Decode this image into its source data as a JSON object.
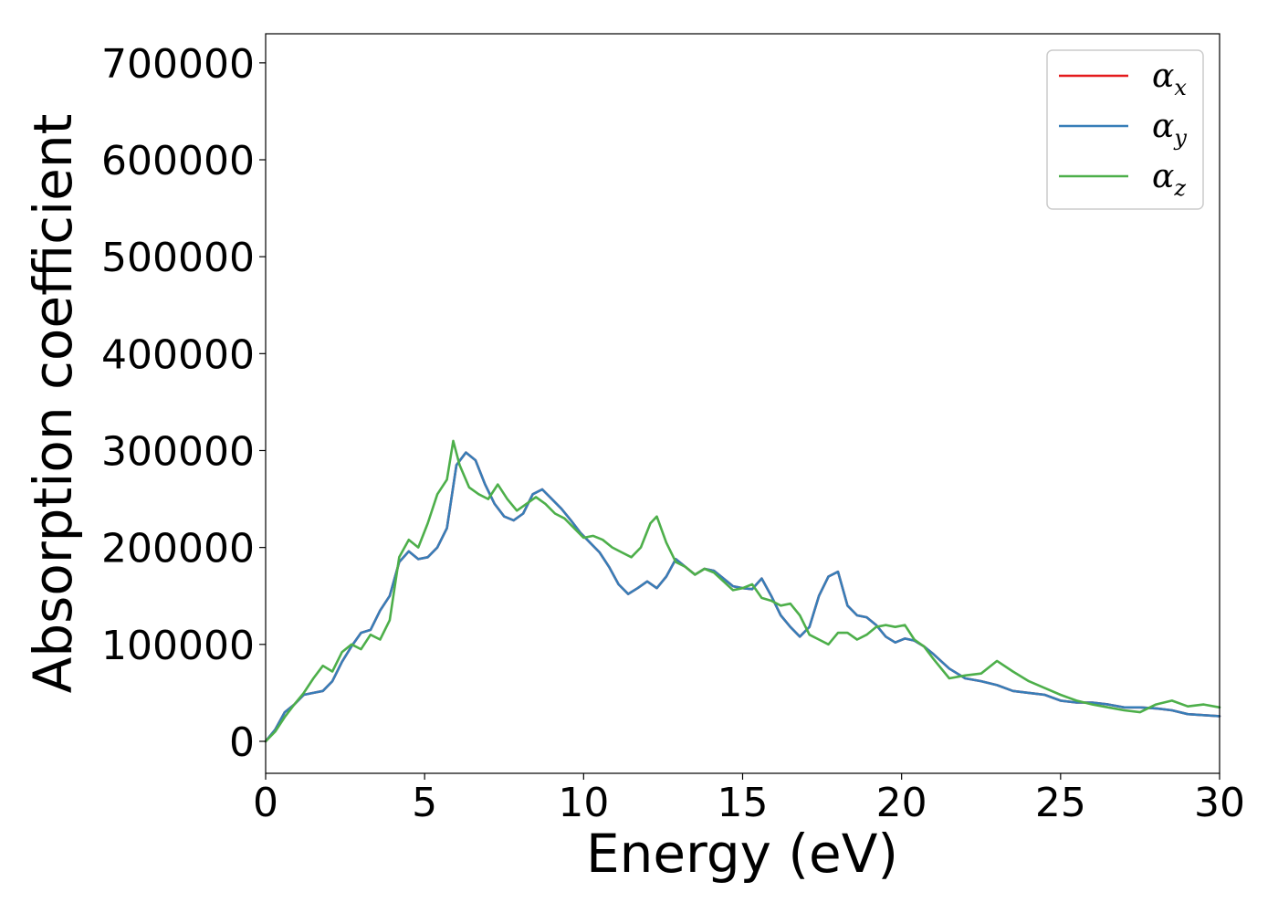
{
  "chart_data": {
    "type": "line",
    "title": "",
    "xlabel": "Energy (eV)",
    "ylabel": "Absorption coefficient",
    "xlim": [
      0,
      30
    ],
    "ylim": [
      -33000,
      730000
    ],
    "xticks": [
      0,
      5,
      10,
      15,
      20,
      25,
      30
    ],
    "yticks": [
      0,
      100000,
      200000,
      300000,
      400000,
      500000,
      600000,
      700000
    ],
    "xtick_labels": [
      "0",
      "5",
      "10",
      "15",
      "20",
      "25",
      "30"
    ],
    "ytick_labels": [
      "0",
      "100000",
      "200000",
      "300000",
      "400000",
      "500000",
      "600000",
      "700000"
    ],
    "grid": false,
    "legend_position": "top-right",
    "series": [
      {
        "name": "α",
        "subscript": "x",
        "color": "#e41a1c",
        "x": [
          0,
          0.3,
          0.6,
          0.9,
          1.2,
          1.5,
          1.8,
          2.1,
          2.4,
          2.7,
          3.0,
          3.3,
          3.6,
          3.9,
          4.2,
          4.5,
          4.8,
          5.1,
          5.4,
          5.7,
          6.0,
          6.3,
          6.6,
          6.9,
          7.2,
          7.5,
          7.8,
          8.1,
          8.4,
          8.7,
          9.0,
          9.3,
          9.6,
          9.9,
          10.2,
          10.5,
          10.8,
          11.1,
          11.4,
          11.7,
          12.0,
          12.3,
          12.6,
          12.9,
          13.2,
          13.5,
          13.8,
          14.1,
          14.4,
          14.7,
          15.0,
          15.3,
          15.6,
          15.9,
          16.2,
          16.5,
          16.8,
          17.1,
          17.4,
          17.7,
          18.0,
          18.3,
          18.6,
          18.9,
          19.2,
          19.5,
          19.8,
          20.1,
          20.4,
          20.7,
          21.0,
          21.5,
          22.0,
          22.5,
          23.0,
          23.5,
          24.0,
          24.5,
          25.0,
          25.5,
          26.0,
          26.5,
          27.0,
          27.5,
          28.0,
          28.5,
          29.0,
          29.5,
          30.0
        ],
        "values": [
          0,
          12000,
          30000,
          38000,
          48000,
          50000,
          52000,
          62000,
          82000,
          98000,
          112000,
          115000,
          135000,
          150000,
          185000,
          196000,
          188000,
          190000,
          200000,
          220000,
          285000,
          298000,
          290000,
          265000,
          245000,
          232000,
          228000,
          235000,
          255000,
          260000,
          250000,
          240000,
          228000,
          215000,
          205000,
          195000,
          180000,
          162000,
          152000,
          158000,
          165000,
          158000,
          170000,
          188000,
          180000,
          172000,
          178000,
          176000,
          168000,
          160000,
          158000,
          157000,
          168000,
          150000,
          130000,
          118000,
          108000,
          118000,
          150000,
          170000,
          175000,
          140000,
          130000,
          128000,
          120000,
          108000,
          102000,
          106000,
          104000,
          98000,
          90000,
          75000,
          65000,
          62000,
          58000,
          52000,
          50000,
          48000,
          42000,
          40000,
          40000,
          38000,
          35000,
          35000,
          34000,
          32000,
          28000,
          27000,
          26000
        ]
      },
      {
        "name": "α",
        "subscript": "y",
        "color": "#377eb8",
        "x": [
          0,
          0.3,
          0.6,
          0.9,
          1.2,
          1.5,
          1.8,
          2.1,
          2.4,
          2.7,
          3.0,
          3.3,
          3.6,
          3.9,
          4.2,
          4.5,
          4.8,
          5.1,
          5.4,
          5.7,
          6.0,
          6.3,
          6.6,
          6.9,
          7.2,
          7.5,
          7.8,
          8.1,
          8.4,
          8.7,
          9.0,
          9.3,
          9.6,
          9.9,
          10.2,
          10.5,
          10.8,
          11.1,
          11.4,
          11.7,
          12.0,
          12.3,
          12.6,
          12.9,
          13.2,
          13.5,
          13.8,
          14.1,
          14.4,
          14.7,
          15.0,
          15.3,
          15.6,
          15.9,
          16.2,
          16.5,
          16.8,
          17.1,
          17.4,
          17.7,
          18.0,
          18.3,
          18.6,
          18.9,
          19.2,
          19.5,
          19.8,
          20.1,
          20.4,
          20.7,
          21.0,
          21.5,
          22.0,
          22.5,
          23.0,
          23.5,
          24.0,
          24.5,
          25.0,
          25.5,
          26.0,
          26.5,
          27.0,
          27.5,
          28.0,
          28.5,
          29.0,
          29.5,
          30.0
        ],
        "values": [
          0,
          12000,
          30000,
          38000,
          48000,
          50000,
          52000,
          62000,
          82000,
          98000,
          112000,
          115000,
          135000,
          150000,
          185000,
          196000,
          188000,
          190000,
          200000,
          220000,
          285000,
          298000,
          290000,
          265000,
          245000,
          232000,
          228000,
          235000,
          255000,
          260000,
          250000,
          240000,
          228000,
          215000,
          205000,
          195000,
          180000,
          162000,
          152000,
          158000,
          165000,
          158000,
          170000,
          188000,
          180000,
          172000,
          178000,
          176000,
          168000,
          160000,
          158000,
          157000,
          168000,
          150000,
          130000,
          118000,
          108000,
          118000,
          150000,
          170000,
          175000,
          140000,
          130000,
          128000,
          120000,
          108000,
          102000,
          106000,
          104000,
          98000,
          90000,
          75000,
          65000,
          62000,
          58000,
          52000,
          50000,
          48000,
          42000,
          40000,
          40000,
          38000,
          35000,
          35000,
          34000,
          32000,
          28000,
          27000,
          26000
        ]
      },
      {
        "name": "α",
        "subscript": "z",
        "color": "#4daf4a",
        "x": [
          0,
          0.3,
          0.6,
          0.9,
          1.2,
          1.5,
          1.8,
          2.1,
          2.4,
          2.7,
          3.0,
          3.3,
          3.6,
          3.9,
          4.2,
          4.5,
          4.8,
          5.1,
          5.4,
          5.7,
          5.9,
          6.1,
          6.4,
          6.7,
          7.0,
          7.3,
          7.6,
          7.9,
          8.2,
          8.5,
          8.8,
          9.1,
          9.4,
          9.7,
          10.0,
          10.3,
          10.6,
          10.9,
          11.2,
          11.5,
          11.8,
          12.1,
          12.3,
          12.6,
          12.9,
          13.2,
          13.5,
          13.8,
          14.1,
          14.4,
          14.7,
          15.0,
          15.3,
          15.6,
          15.9,
          16.2,
          16.5,
          16.8,
          17.1,
          17.4,
          17.7,
          18.0,
          18.3,
          18.6,
          18.9,
          19.2,
          19.5,
          19.8,
          20.1,
          20.4,
          20.7,
          21.0,
          21.5,
          22.0,
          22.5,
          23.0,
          23.5,
          24.0,
          24.5,
          25.0,
          25.5,
          26.0,
          26.5,
          27.0,
          27.5,
          28.0,
          28.5,
          29.0,
          29.5,
          30.0
        ],
        "values": [
          0,
          10000,
          25000,
          38000,
          50000,
          65000,
          78000,
          72000,
          92000,
          100000,
          95000,
          110000,
          105000,
          125000,
          190000,
          208000,
          200000,
          225000,
          255000,
          270000,
          310000,
          285000,
          262000,
          255000,
          250000,
          265000,
          250000,
          238000,
          245000,
          252000,
          245000,
          235000,
          230000,
          220000,
          210000,
          212000,
          208000,
          200000,
          195000,
          190000,
          200000,
          225000,
          232000,
          205000,
          185000,
          180000,
          172000,
          178000,
          174000,
          165000,
          156000,
          158000,
          162000,
          148000,
          145000,
          140000,
          142000,
          130000,
          110000,
          105000,
          100000,
          112000,
          112000,
          105000,
          110000,
          118000,
          120000,
          118000,
          120000,
          105000,
          98000,
          85000,
          65000,
          68000,
          70000,
          83000,
          72000,
          62000,
          55000,
          48000,
          42000,
          38000,
          35000,
          32000,
          30000,
          38000,
          42000,
          36000,
          38000,
          35000
        ]
      }
    ]
  }
}
